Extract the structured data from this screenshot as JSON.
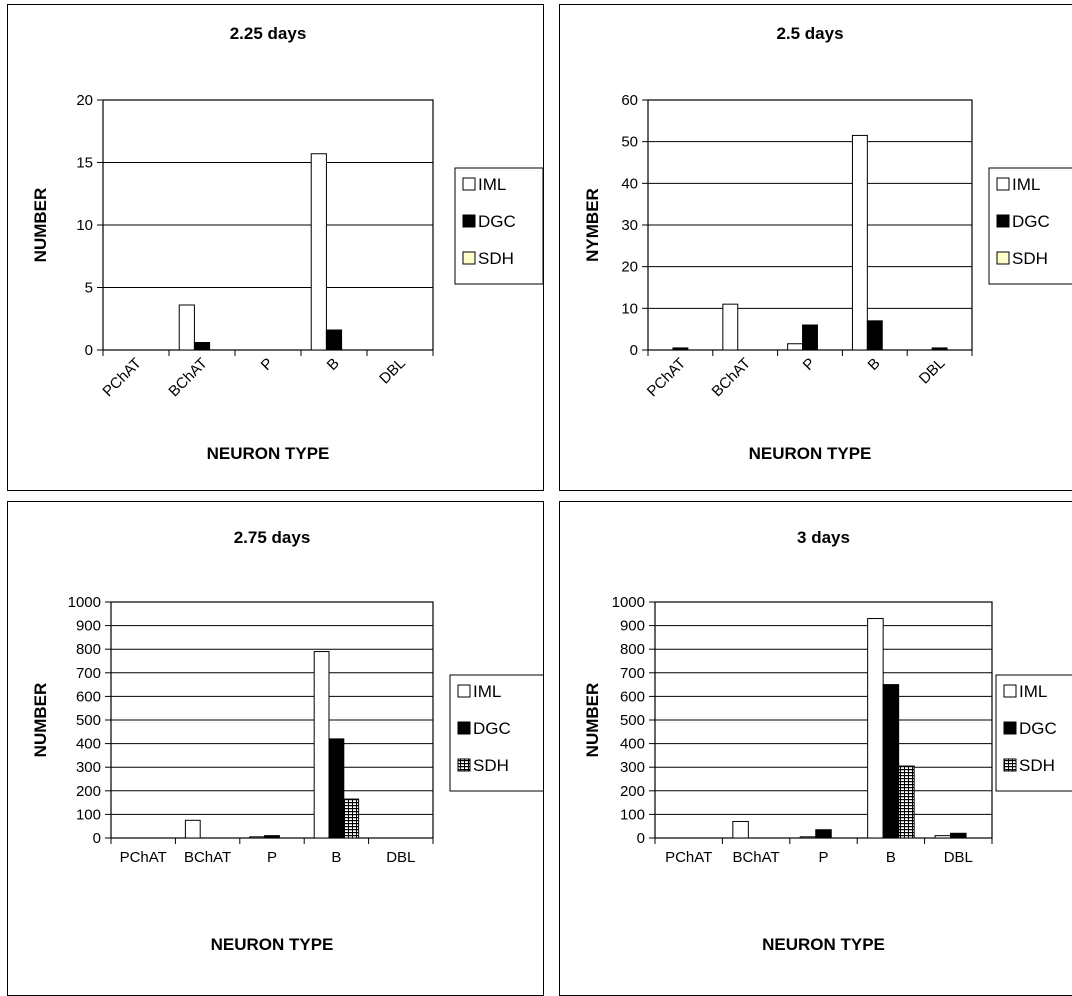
{
  "colors": {
    "iml": "#ffffff",
    "dgc": "#000000",
    "sdh_top": "#ffffcc",
    "sdh_bottom_pattern": "#000000",
    "grid": "#000000",
    "frame": "#000000"
  },
  "chart_data": [
    {
      "type": "bar",
      "title": "2.25 days",
      "xlabel": "NEURON TYPE",
      "ylabel": "NUMBER",
      "categories": [
        "PChAT",
        "BChAT",
        "P",
        "B",
        "DBL"
      ],
      "tick_rotation": "rotated",
      "ylim": [
        0,
        20
      ],
      "yticks": [
        "0",
        "5",
        "10",
        "15",
        "20"
      ],
      "grid": true,
      "legend": "right",
      "series": [
        {
          "name": "IML",
          "values": [
            0,
            3.6,
            0,
            15.7,
            0
          ]
        },
        {
          "name": "DGC",
          "values": [
            0,
            0.6,
            0,
            1.6,
            0
          ]
        },
        {
          "name": "SDH",
          "values": [
            0,
            0,
            0,
            0,
            0
          ]
        }
      ]
    },
    {
      "type": "bar",
      "title": "2.5 days",
      "xlabel": "NEURON TYPE",
      "ylabel": "NYMBER",
      "categories": [
        "PChAT",
        "BChAT",
        "P",
        "B",
        "DBL"
      ],
      "tick_rotation": "rotated",
      "ylim": [
        0,
        60
      ],
      "yticks": [
        "0",
        "10",
        "20",
        "30",
        "40",
        "50",
        "60"
      ],
      "grid": true,
      "legend": "right",
      "series": [
        {
          "name": "IML",
          "values": [
            0,
            11,
            1.5,
            51.5,
            0
          ]
        },
        {
          "name": "DGC",
          "values": [
            0.5,
            0,
            6,
            7,
            0.5
          ]
        },
        {
          "name": "SDH",
          "values": [
            0,
            0,
            0,
            0,
            0
          ]
        }
      ]
    },
    {
      "type": "bar",
      "title": "2.75 days",
      "xlabel": "NEURON TYPE",
      "ylabel": "NUMBER",
      "categories": [
        "PChAT",
        "BChAT",
        "P",
        "B",
        "DBL"
      ],
      "tick_rotation": "horizontal",
      "ylim": [
        0,
        1000
      ],
      "yticks": [
        "0",
        "100",
        "200",
        "300",
        "400",
        "500",
        "600",
        "700",
        "800",
        "900",
        "1000"
      ],
      "grid": true,
      "legend": "right",
      "series": [
        {
          "name": "IML",
          "values": [
            0,
            75,
            5,
            790,
            0
          ]
        },
        {
          "name": "DGC",
          "values": [
            0,
            0,
            10,
            420,
            0
          ]
        },
        {
          "name": "SDH",
          "values": [
            0,
            0,
            0,
            165,
            0
          ]
        }
      ]
    },
    {
      "type": "bar",
      "title": "3 days",
      "xlabel": "NEURON TYPE",
      "ylabel": "NUMBER",
      "categories": [
        "PChAT",
        "BChAT",
        "P",
        "B",
        "DBL"
      ],
      "tick_rotation": "horizontal",
      "ylim": [
        0,
        1000
      ],
      "yticks": [
        "0",
        "100",
        "200",
        "300",
        "400",
        "500",
        "600",
        "700",
        "800",
        "900",
        "1000"
      ],
      "grid": true,
      "legend": "right",
      "series": [
        {
          "name": "IML",
          "values": [
            0,
            70,
            5,
            930,
            10
          ]
        },
        {
          "name": "DGC",
          "values": [
            0,
            0,
            35,
            650,
            20
          ]
        },
        {
          "name": "SDH",
          "values": [
            0,
            0,
            0,
            305,
            0
          ]
        }
      ]
    }
  ]
}
